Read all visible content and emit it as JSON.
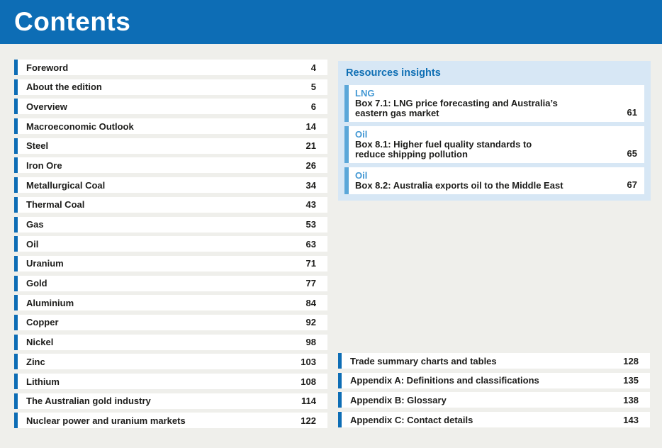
{
  "colors": {
    "page_bg": "#efefeb",
    "accent_blue": "#0d6db5",
    "row_bg": "#ffffff",
    "text_dark": "#1d1d1b",
    "panel_bg": "#d7e7f5",
    "card_accent": "#5ba7d9",
    "category_blue": "#4197d3",
    "heading_blue": "#0f6fb4"
  },
  "header": {
    "title": "Contents"
  },
  "left_toc": {
    "items": [
      {
        "title": "Foreword",
        "page": "4"
      },
      {
        "title": "About the edition",
        "page": "5"
      },
      {
        "title": "Overview",
        "page": "6"
      },
      {
        "title": "Macroeconomic Outlook",
        "page": "14"
      },
      {
        "title": "Steel",
        "page": "21"
      },
      {
        "title": "Iron Ore",
        "page": "26"
      },
      {
        "title": "Metallurgical Coal",
        "page": "34"
      },
      {
        "title": "Thermal Coal",
        "page": "43"
      },
      {
        "title": "Gas",
        "page": "53"
      },
      {
        "title": "Oil",
        "page": "63"
      },
      {
        "title": "Uranium",
        "page": "71"
      },
      {
        "title": "Gold",
        "page": "77"
      },
      {
        "title": "Aluminium",
        "page": "84"
      },
      {
        "title": "Copper",
        "page": "92"
      },
      {
        "title": "Nickel",
        "page": "98"
      },
      {
        "title": "Zinc",
        "page": "103"
      },
      {
        "title": "Lithium",
        "page": "108"
      },
      {
        "title": "The Australian gold industry",
        "page": "114"
      },
      {
        "title": "Nuclear power and uranium markets",
        "page": "122"
      }
    ]
  },
  "insights": {
    "heading": "Resources insights",
    "items": [
      {
        "category": "LNG",
        "title": "Box 7.1: LNG price forecasting and Australia’s\neastern gas market",
        "page": "61"
      },
      {
        "category": "Oil",
        "title": "Box 8.1: Higher fuel quality standards to\nreduce shipping pollution",
        "page": "65"
      },
      {
        "category": "Oil",
        "title": "Box 8.2: Australia exports oil to the Middle East",
        "page": "67"
      }
    ]
  },
  "bottom_toc": {
    "items": [
      {
        "title": "Trade summary charts and tables",
        "page": "128"
      },
      {
        "title": "Appendix A: Definitions and classifications",
        "page": "135"
      },
      {
        "title": "Appendix B: Glossary",
        "page": "138"
      },
      {
        "title": "Appendix C: Contact details",
        "page": "143"
      }
    ]
  }
}
